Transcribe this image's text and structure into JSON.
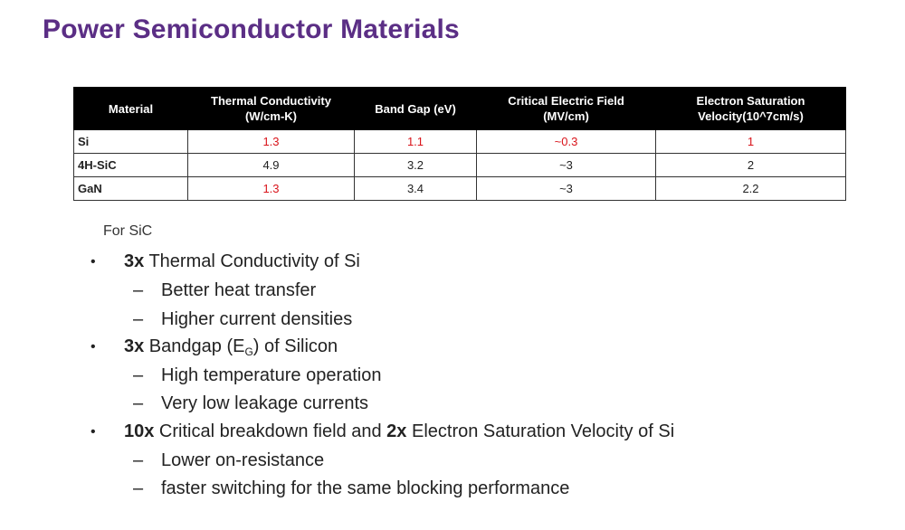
{
  "title": "Power Semiconductor Materials",
  "table": {
    "headers": [
      "Material",
      "Thermal Conductivity\n(W/cm-K)",
      "Band Gap (eV)",
      "Critical Electric Field\n(MV/cm)",
      "Electron Saturation\nVelocity(10^7cm/s)"
    ],
    "rows": [
      [
        "Si",
        "1.3",
        "1.1",
        "~0.3",
        "1"
      ],
      [
        "4H-SiC",
        "4.9",
        "3.2",
        "~3",
        "2"
      ],
      [
        "GaN",
        "1.3",
        "3.4",
        "~3",
        "2.2"
      ]
    ],
    "highlight_color": "#d9141b",
    "header_bg": "#000000"
  },
  "subtitle": "For SiC",
  "bullets": [
    {
      "bold": "3x",
      "text": " Thermal Conductivity of Si",
      "subs": [
        "Better heat transfer",
        "Higher current densities"
      ]
    },
    {
      "bold": "3x",
      "text_before": " Bandgap (E",
      "subscript": "G",
      "text_after": ") of Silicon",
      "subs": [
        "High temperature operation",
        "Very low leakage currents"
      ]
    },
    {
      "bold": "10x",
      "text": " Critical breakdown field and ",
      "bold2": "2x",
      "text2": " Electron Saturation Velocity of Si",
      "subs": [
        "Lower on-resistance",
        "faster switching for the same blocking performance"
      ]
    }
  ],
  "colors": {
    "title": "#5b2e85",
    "text": "#222222"
  }
}
